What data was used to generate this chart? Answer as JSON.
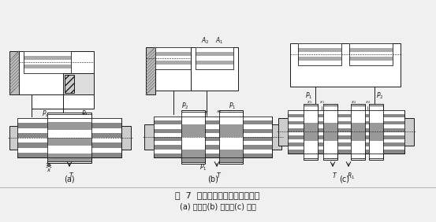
{
  "title": "图  7  单边、双边和四边控制滑阀",
  "subtitle": "(a) 单边；(b) 双边；(c) 四边",
  "label_a": "(a)",
  "label_b": "(b)",
  "label_c": "(c)",
  "bg_color": "#f0f0f0",
  "line_color": "#1a1a1a",
  "hatch_color": "#555555",
  "gray_fill": "#aaaaaa",
  "dark_fill": "#444444",
  "white_fill": "#ffffff",
  "light_gray": "#cccccc",
  "fig_width": 5.53,
  "fig_height": 2.82,
  "dpi": 100
}
